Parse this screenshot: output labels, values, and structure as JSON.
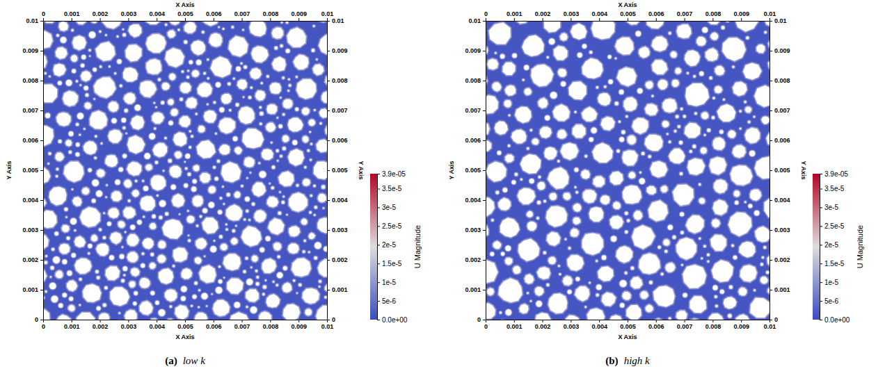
{
  "chart_data": [
    {
      "type": "heatmap",
      "label": "(a)",
      "title": "low k",
      "x_label": "X Axis",
      "y_label": "Y Axis",
      "xlim": [
        0,
        0.01
      ],
      "ylim": [
        0,
        0.01
      ],
      "xticks": [
        0,
        0.001,
        0.002,
        0.003,
        0.004,
        0.005,
        0.006,
        0.007,
        0.008,
        0.009,
        0.01
      ],
      "yticks": [
        0,
        0.001,
        0.002,
        0.003,
        0.004,
        0.005,
        0.006,
        0.007,
        0.008,
        0.009,
        0.01
      ],
      "colorbar": {
        "title": "U Magnitude",
        "range": [
          0,
          3.9e-05
        ],
        "ticks": [
          {
            "value": 0,
            "label": "0.0e+00"
          },
          {
            "value": 5e-06,
            "label": "5e-6"
          },
          {
            "value": 1e-05,
            "label": "1e-5"
          },
          {
            "value": 1.5e-05,
            "label": "1.5e-5"
          },
          {
            "value": 2e-05,
            "label": "2e-5"
          },
          {
            "value": 2.5e-05,
            "label": "2.5e-5"
          },
          {
            "value": 3e-05,
            "label": "3e-5"
          },
          {
            "value": 3.5e-05,
            "label": "3.5e-5"
          },
          {
            "value": 3.9e-05,
            "label": "3.9e-05"
          }
        ],
        "colors": [
          "#3b4cc0",
          "#dddddd",
          "#b40426"
        ]
      }
    },
    {
      "type": "heatmap",
      "label": "(b)",
      "title": "high k",
      "x_label": "X Axis",
      "y_label": "Y Axis",
      "xlim": [
        0,
        0.01
      ],
      "ylim": [
        0,
        0.01
      ],
      "xticks": [
        0,
        0.001,
        0.002,
        0.003,
        0.004,
        0.005,
        0.006,
        0.007,
        0.008,
        0.009,
        0.01
      ],
      "yticks": [
        0,
        0.001,
        0.002,
        0.003,
        0.004,
        0.005,
        0.006,
        0.007,
        0.008,
        0.009,
        0.01
      ],
      "colorbar": {
        "title": "U Magnitude",
        "range": [
          0,
          3.9e-05
        ],
        "ticks": [
          {
            "value": 0,
            "label": "0.0e+00"
          },
          {
            "value": 5e-06,
            "label": "5e-6"
          },
          {
            "value": 1e-05,
            "label": "1e-5"
          },
          {
            "value": 1.5e-05,
            "label": "1.5e-5"
          },
          {
            "value": 2e-05,
            "label": "2e-5"
          },
          {
            "value": 2.5e-05,
            "label": "2.5e-5"
          },
          {
            "value": 3e-05,
            "label": "3e-5"
          },
          {
            "value": 3.5e-05,
            "label": "3.5e-5"
          },
          {
            "value": 3.9e-05,
            "label": "3.9e-05"
          }
        ],
        "colors": [
          "#3b4cc0",
          "#dddddd",
          "#b40426"
        ]
      }
    }
  ]
}
